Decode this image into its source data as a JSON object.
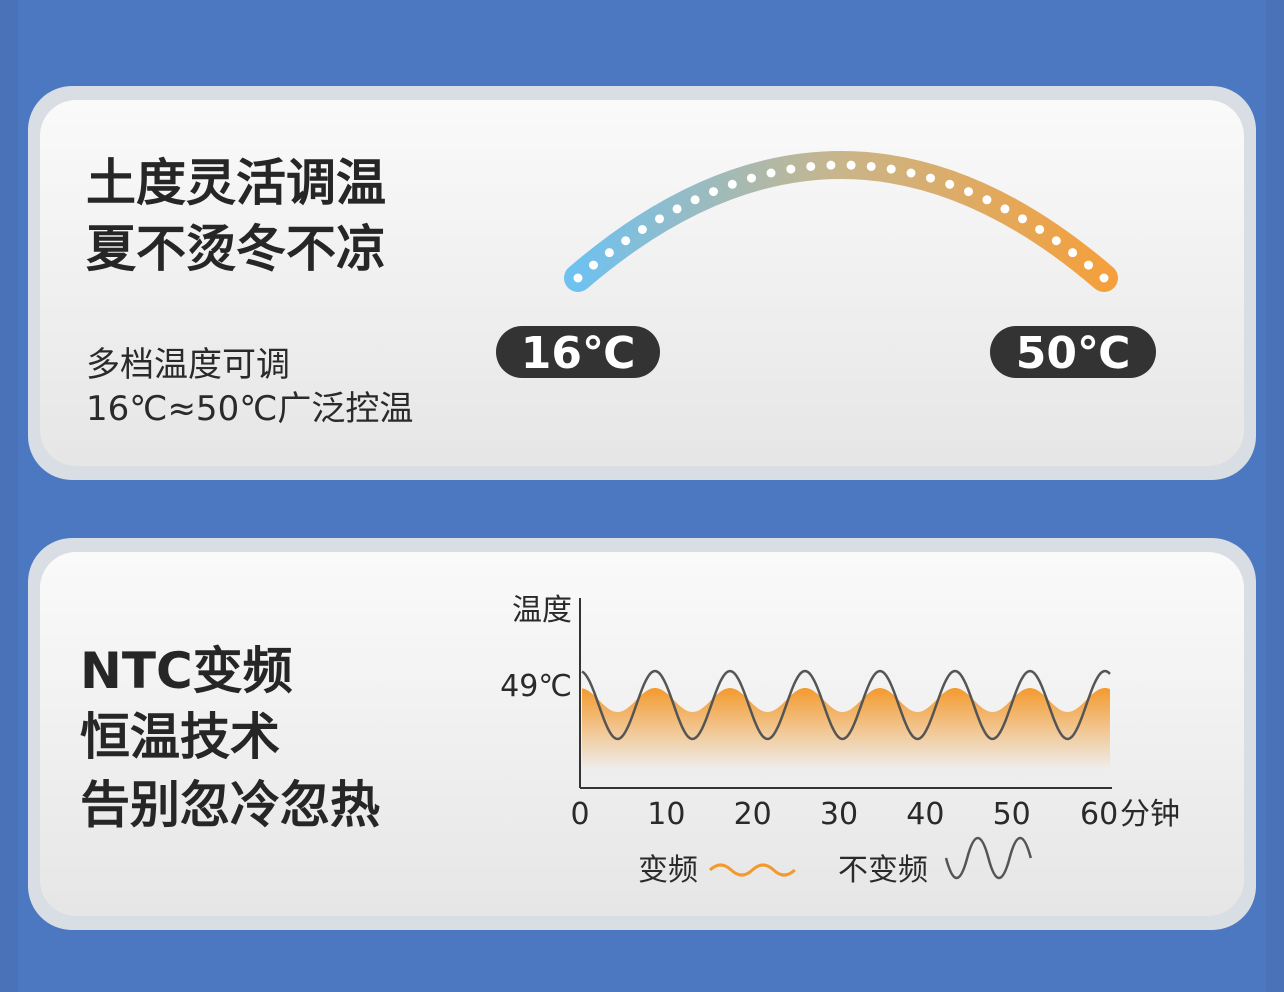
{
  "panel1": {
    "title_lines": [
      "土度灵活调温",
      "夏不烫冬不凉"
    ],
    "subtitle_lines": [
      "多档温度可调",
      "16℃≈50℃广泛控温"
    ],
    "min_label": "16℃",
    "max_label": "50℃"
  },
  "panel2": {
    "title_lines": [
      "NTC变频",
      "恒温技术",
      "告别忽冷忽热"
    ],
    "y_axis_label": "温度",
    "y_marker": "49℃",
    "x_ticks": [
      "0",
      "10",
      "20",
      "30",
      "40",
      "50",
      "60"
    ],
    "x_unit": "分钟",
    "legend": [
      "变频",
      "不变频"
    ]
  }
}
